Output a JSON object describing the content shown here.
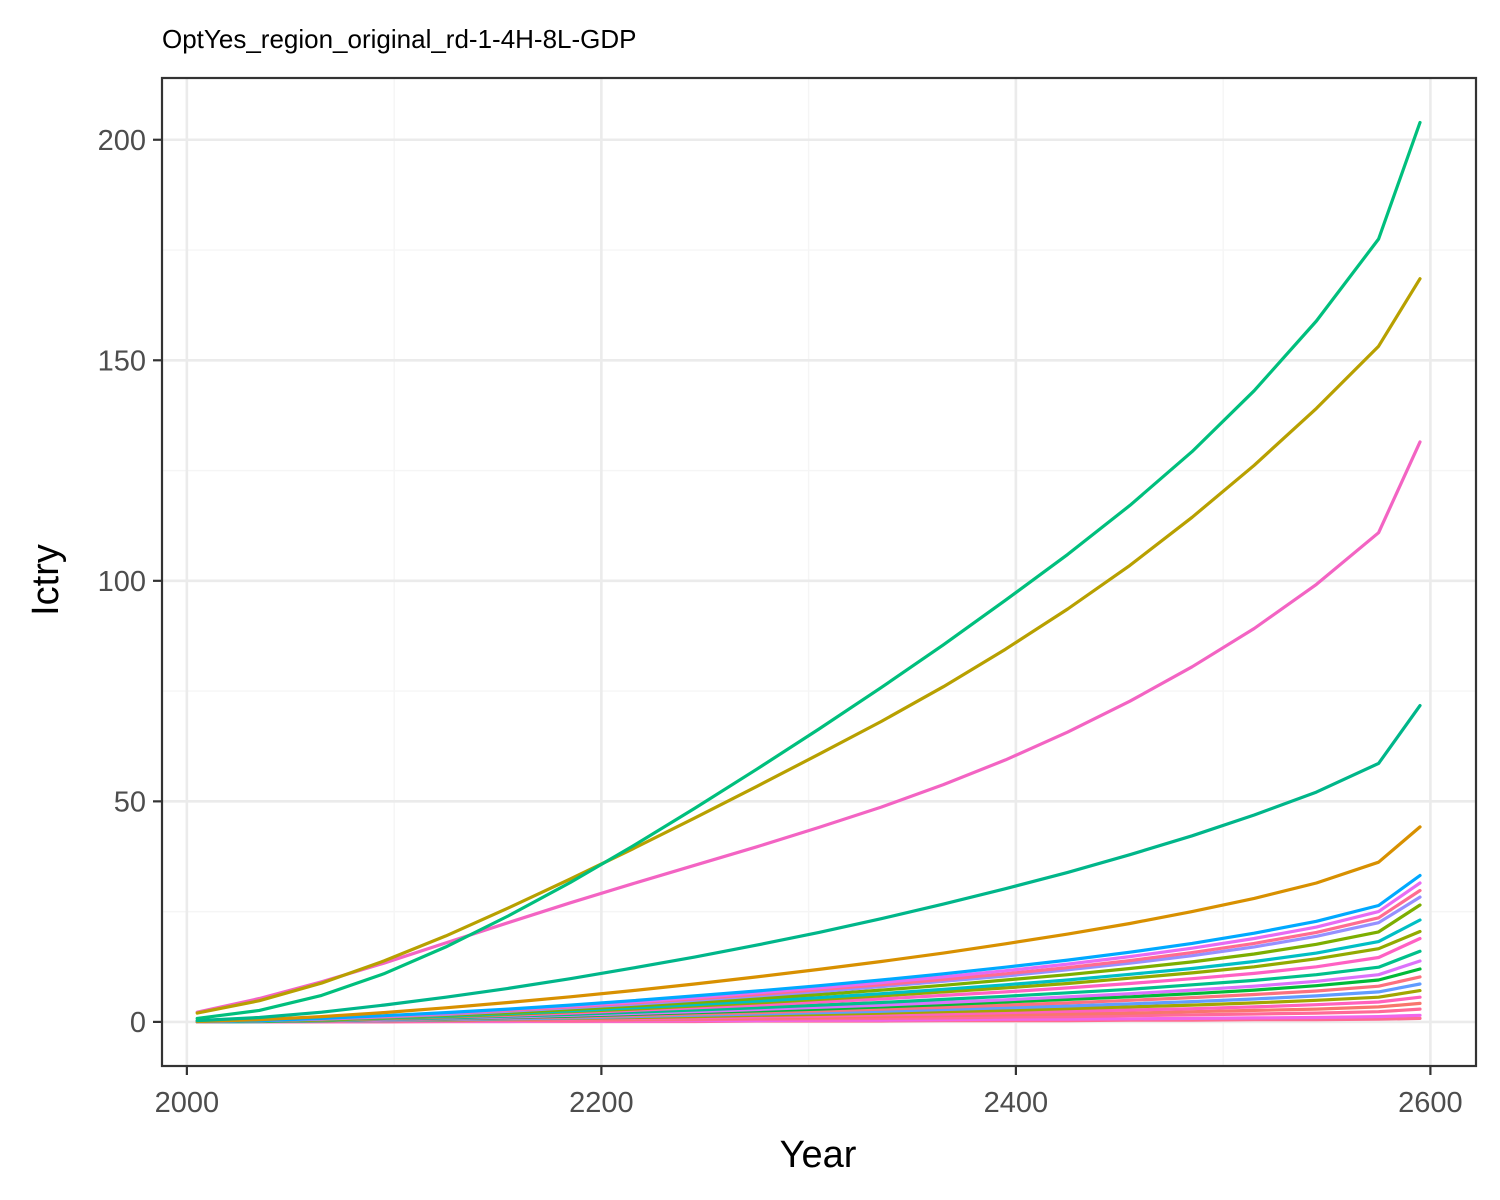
{
  "chart_data": {
    "type": "line",
    "title": "OptYes_region_original_rd-1-4H-8L-GDP",
    "xlabel": "Year",
    "ylabel": "Ictry",
    "xlim": [
      1988,
      2622
    ],
    "ylim": [
      -10,
      214
    ],
    "x_ticks": [
      "2000",
      "2200",
      "2400",
      "2600"
    ],
    "y_ticks": [
      "0",
      "50",
      "100",
      "150",
      "200"
    ],
    "grid": true,
    "legend": "none",
    "colors": {
      "grid_major": "#ebebeb",
      "grid_minor": "#f5f5f5",
      "panel_border": "#333333"
    },
    "x": [
      2005,
      2035,
      2065,
      2095,
      2125,
      2155,
      2185,
      2215,
      2245,
      2275,
      2305,
      2335,
      2365,
      2395,
      2425,
      2455,
      2485,
      2515,
      2545,
      2575,
      2595
    ],
    "series": [
      {
        "color": "#00BF7D",
        "values": [
          0.8,
          2.6,
          6.0,
          10.9,
          17.0,
          24.0,
          31.6,
          39.8,
          48.4,
          57.3,
          66.4,
          75.8,
          85.5,
          95.6,
          106.0,
          117.1,
          129.3,
          143.1,
          158.9,
          177.5,
          203.9
        ]
      },
      {
        "color": "#B8A000",
        "values": [
          2.0,
          4.8,
          8.8,
          13.8,
          19.5,
          25.8,
          32.4,
          39.2,
          46.2,
          53.4,
          60.7,
          68.1,
          76.0,
          84.5,
          93.6,
          103.5,
          114.4,
          126.2,
          139.1,
          153.2,
          168.5
        ]
      },
      {
        "color": "#F364C3",
        "values": [
          2.2,
          5.3,
          9.1,
          13.3,
          17.9,
          22.5,
          27.0,
          31.3,
          35.5,
          39.7,
          44.1,
          48.7,
          53.8,
          59.4,
          65.7,
          72.7,
          80.5,
          89.2,
          99.2,
          110.9,
          131.5
        ]
      },
      {
        "color": "#00B68A",
        "values": [
          0.3,
          1.0,
          2.2,
          3.8,
          5.6,
          7.6,
          9.8,
          12.2,
          14.7,
          17.4,
          20.3,
          23.4,
          26.7,
          30.2,
          33.9,
          37.9,
          42.2,
          46.9,
          52.1,
          58.6,
          71.7
        ]
      },
      {
        "color": "#D89000",
        "values": [
          0.1,
          0.5,
          1.2,
          2.1,
          3.2,
          4.4,
          5.7,
          7.1,
          8.6,
          10.2,
          11.9,
          13.7,
          15.6,
          17.7,
          19.9,
          22.3,
          25.0,
          28.0,
          31.5,
          36.2,
          44.2
        ]
      },
      {
        "color": "#00A9FF",
        "values": [
          0.1,
          0.3,
          0.8,
          1.4,
          2.1,
          2.9,
          3.8,
          4.8,
          5.9,
          7.0,
          8.2,
          9.5,
          10.9,
          12.4,
          14.0,
          15.8,
          17.8,
          20.1,
          22.8,
          26.4,
          33.2
        ]
      },
      {
        "color": "#E76BF3",
        "values": [
          0.1,
          0.3,
          0.7,
          1.3,
          2.0,
          2.8,
          3.6,
          4.5,
          5.5,
          6.6,
          7.7,
          8.9,
          10.2,
          11.6,
          13.1,
          14.8,
          16.7,
          18.9,
          21.5,
          25.0,
          31.5
        ]
      },
      {
        "color": "#FF6C91",
        "values": [
          0.1,
          0.3,
          0.7,
          1.2,
          1.9,
          2.6,
          3.4,
          4.3,
          5.2,
          6.2,
          7.3,
          8.4,
          9.6,
          10.9,
          12.3,
          13.9,
          15.7,
          17.8,
          20.3,
          23.6,
          29.8
        ]
      },
      {
        "color": "#9590FF",
        "values": [
          0.1,
          0.3,
          0.6,
          1.1,
          1.7,
          2.4,
          3.2,
          4.0,
          4.9,
          5.9,
          6.9,
          8.0,
          9.2,
          10.4,
          11.8,
          13.3,
          15.0,
          17.0,
          19.4,
          22.5,
          28.3
        ]
      },
      {
        "color": "#7CAE00",
        "values": [
          0.1,
          0.2,
          0.5,
          1.0,
          1.5,
          2.1,
          2.8,
          3.6,
          4.4,
          5.3,
          6.2,
          7.2,
          8.3,
          9.5,
          10.7,
          12.1,
          13.6,
          15.4,
          17.6,
          20.4,
          26.5
        ]
      },
      {
        "color": "#00BFC4",
        "values": [
          0.1,
          0.2,
          0.5,
          0.9,
          1.3,
          1.9,
          2.5,
          3.2,
          3.9,
          4.7,
          5.5,
          6.4,
          7.4,
          8.4,
          9.5,
          10.8,
          12.1,
          13.7,
          15.6,
          18.2,
          23.1
        ]
      },
      {
        "color": "#93AA00",
        "values": [
          0.1,
          0.2,
          0.4,
          0.8,
          1.2,
          1.7,
          2.3,
          2.9,
          3.6,
          4.3,
          5.1,
          5.9,
          6.8,
          7.7,
          8.7,
          9.9,
          11.1,
          12.5,
          14.3,
          16.6,
          20.5
        ]
      },
      {
        "color": "#FF61C3",
        "values": [
          0.0,
          0.2,
          0.4,
          0.7,
          1.1,
          1.5,
          2.0,
          2.6,
          3.2,
          3.8,
          4.5,
          5.2,
          6.0,
          6.8,
          7.7,
          8.7,
          9.8,
          11.0,
          12.5,
          14.6,
          18.9
        ]
      },
      {
        "color": "#00C08B",
        "values": [
          0.0,
          0.1,
          0.3,
          0.6,
          0.9,
          1.3,
          1.7,
          2.2,
          2.7,
          3.2,
          3.8,
          4.4,
          5.1,
          5.8,
          6.6,
          7.4,
          8.4,
          9.4,
          10.7,
          12.4,
          16.0
        ]
      },
      {
        "color": "#DB72FB",
        "values": [
          0.0,
          0.1,
          0.3,
          0.5,
          0.8,
          1.1,
          1.5,
          1.9,
          2.3,
          2.8,
          3.3,
          3.8,
          4.4,
          5.0,
          5.7,
          6.4,
          7.2,
          8.1,
          9.2,
          10.7,
          13.8
        ]
      },
      {
        "color": "#00BA38",
        "values": [
          0.0,
          0.1,
          0.3,
          0.5,
          0.7,
          1.0,
          1.3,
          1.7,
          2.1,
          2.5,
          2.9,
          3.4,
          3.9,
          4.5,
          5.1,
          5.7,
          6.4,
          7.2,
          8.2,
          9.5,
          12.0
        ]
      },
      {
        "color": "#FC717F",
        "values": [
          0.0,
          0.1,
          0.2,
          0.4,
          0.6,
          0.9,
          1.1,
          1.4,
          1.8,
          2.1,
          2.5,
          2.9,
          3.3,
          3.8,
          4.3,
          4.9,
          5.5,
          6.2,
          7.0,
          8.1,
          10.2
        ]
      },
      {
        "color": "#619CFF",
        "values": [
          0.0,
          0.1,
          0.2,
          0.3,
          0.5,
          0.7,
          0.9,
          1.2,
          1.5,
          1.8,
          2.1,
          2.4,
          2.8,
          3.2,
          3.6,
          4.1,
          4.6,
          5.2,
          5.9,
          6.8,
          8.6
        ]
      },
      {
        "color": "#A3A500",
        "values": [
          0.0,
          0.1,
          0.2,
          0.3,
          0.4,
          0.6,
          0.8,
          1.0,
          1.2,
          1.5,
          1.7,
          2.0,
          2.3,
          2.6,
          3.0,
          3.4,
          3.8,
          4.3,
          4.9,
          5.6,
          7.1
        ]
      },
      {
        "color": "#FF62BC",
        "values": [
          0.0,
          0.0,
          0.1,
          0.2,
          0.3,
          0.5,
          0.6,
          0.8,
          0.9,
          1.1,
          1.3,
          1.6,
          1.8,
          2.1,
          2.4,
          2.7,
          3.0,
          3.4,
          3.9,
          4.5,
          5.6
        ]
      },
      {
        "color": "#F8766D",
        "values": [
          0.0,
          0.0,
          0.1,
          0.2,
          0.3,
          0.4,
          0.5,
          0.6,
          0.7,
          0.9,
          1.0,
          1.2,
          1.4,
          1.6,
          1.8,
          2.0,
          2.3,
          2.6,
          2.9,
          3.4,
          4.2
        ]
      },
      {
        "color": "#FF6A98",
        "values": [
          0.0,
          0.0,
          0.1,
          0.1,
          0.2,
          0.3,
          0.3,
          0.4,
          0.5,
          0.6,
          0.7,
          0.8,
          0.9,
          1.1,
          1.2,
          1.4,
          1.6,
          1.8,
          2.0,
          2.3,
          2.9
        ]
      },
      {
        "color": "#F066EA",
        "values": [
          0.0,
          0.0,
          0.0,
          0.1,
          0.1,
          0.1,
          0.2,
          0.2,
          0.3,
          0.3,
          0.4,
          0.4,
          0.5,
          0.6,
          0.6,
          0.7,
          0.8,
          0.9,
          1.0,
          1.2,
          1.5
        ]
      },
      {
        "color": "#FF6C91",
        "values": [
          0.0,
          0.0,
          0.0,
          0.0,
          0.1,
          0.1,
          0.1,
          0.1,
          0.1,
          0.2,
          0.2,
          0.2,
          0.3,
          0.3,
          0.3,
          0.4,
          0.4,
          0.5,
          0.5,
          0.6,
          0.8
        ]
      }
    ]
  }
}
